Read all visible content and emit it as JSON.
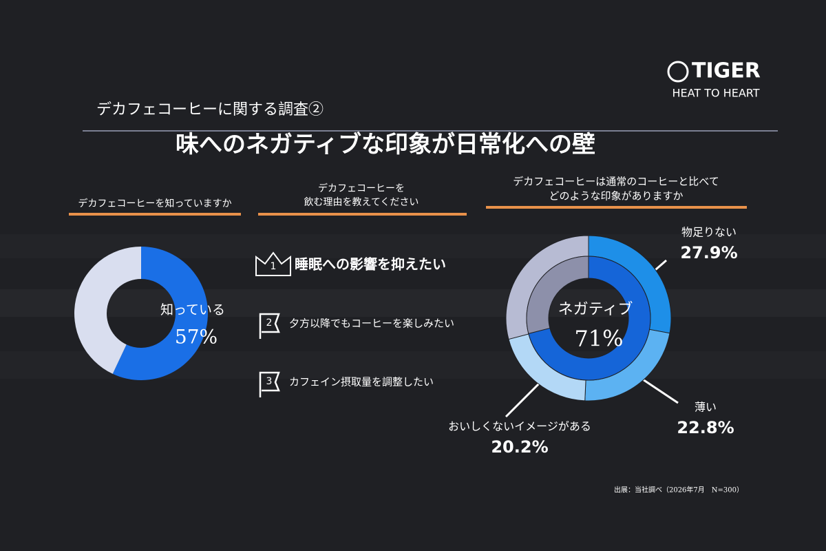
{
  "logo": {
    "brand": "TIGER",
    "tagline": "HEAT TO HEART"
  },
  "header": {
    "section": "デカフェコーヒーに関する調査②",
    "title": "味へのネガティブな印象が日常化への壁"
  },
  "ranking": {
    "title_lines": [
      "デカフェコーヒーを",
      "飲む理由を教えてください"
    ],
    "items": [
      {
        "rank": 1,
        "label": "睡眠への影響を抑えたい"
      },
      {
        "rank": 2,
        "label": "夕方以降でもコーヒーを楽しみたい"
      },
      {
        "rank": 3,
        "label": "カフェイン摂取量を調整したい"
      }
    ]
  },
  "chart_data": [
    {
      "type": "donut",
      "title": "デカフェコーヒーを知っていますか",
      "categories": [
        "知っている",
        null
      ],
      "values": [
        57,
        43
      ],
      "value_labels": [
        "57%",
        null
      ],
      "colors": [
        "#1a6fe6",
        "#d9deef"
      ]
    },
    {
      "type": "nested_donut",
      "title_lines": [
        "デカフェコーヒーは通常のコーヒーと比べて",
        "どのような印象がありますか"
      ],
      "center_label": "ネガティブ",
      "inner": {
        "values": [
          71,
          29
        ],
        "value_labels": [
          "71%",
          null
        ],
        "colors": [
          "#1565d8",
          "#8d90aa"
        ]
      },
      "categories": [
        "物足りない",
        "薄い",
        "おいしくないイメージがある",
        null
      ],
      "values": [
        27.9,
        22.8,
        20.2,
        29.1
      ],
      "value_labels": [
        "27.9%",
        "22.8%",
        "20.2%",
        null
      ],
      "colors": [
        "#1e8fe8",
        "#5cb2f2",
        "#b3d8f6",
        "#b7bbd3"
      ]
    }
  ],
  "footer": {
    "source": "出展：当社調べ（2026年7月　N=300）"
  }
}
